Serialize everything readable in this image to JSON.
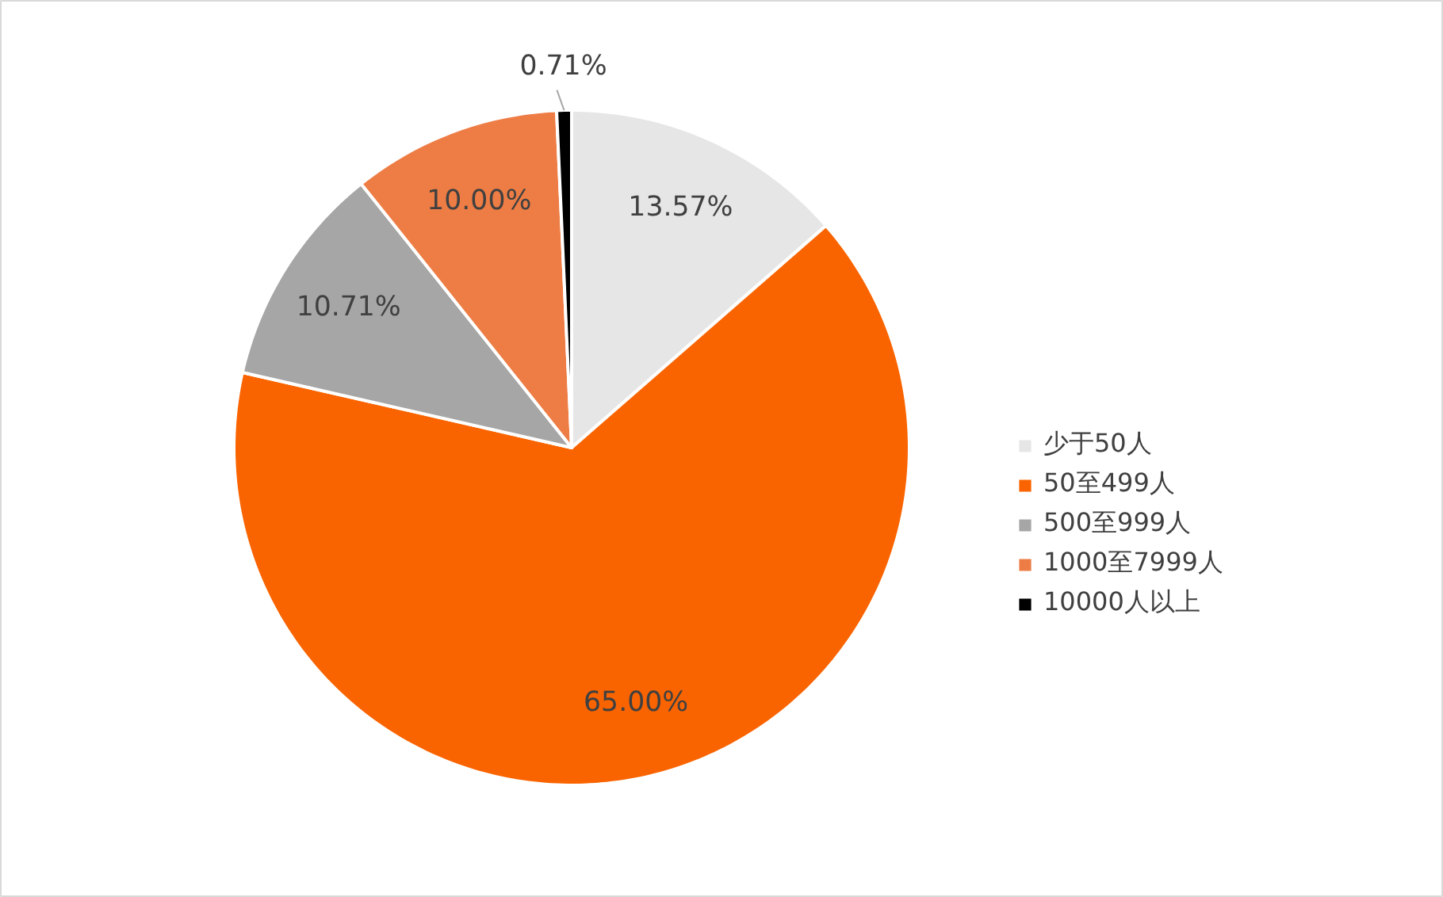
{
  "chart_data": {
    "type": "pie",
    "categories": [
      "少于50人",
      "50至499人",
      "500至999人",
      "1000至7999人",
      "10000人以上"
    ],
    "values": [
      13.57,
      65.0,
      10.71,
      10.0,
      0.71
    ],
    "colors": [
      "#e6e6e6",
      "#fa6400",
      "#a6a6a6",
      "#ee7d45",
      "#000000"
    ],
    "value_labels": [
      "13.57%",
      "65.00%",
      "10.71%",
      "10.00%",
      "0.71%"
    ],
    "legend": "right"
  }
}
